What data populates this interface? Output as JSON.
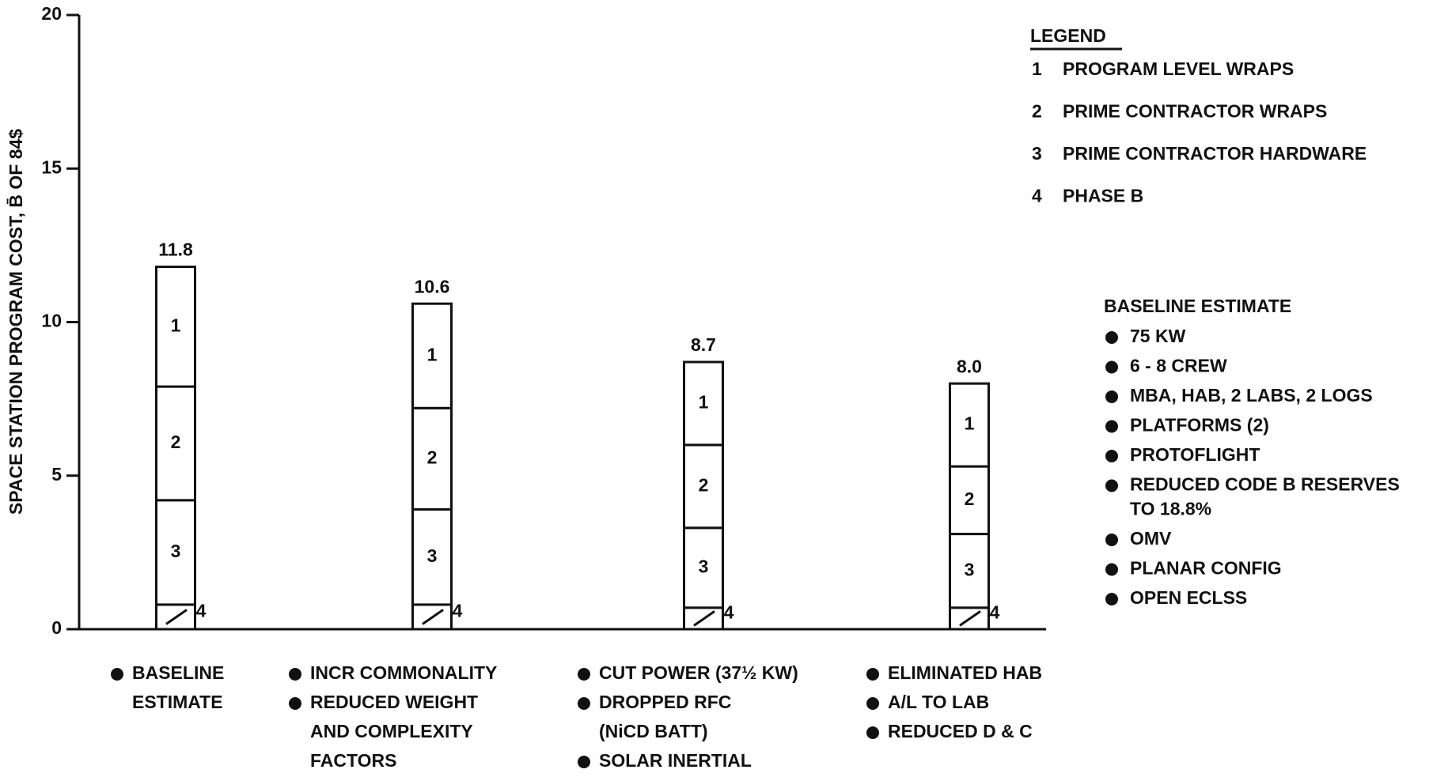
{
  "chart_data": {
    "type": "stacked-bar",
    "y_label": "SPACE STATION PROGRAM COST, B̄ OF 84$",
    "categories": [
      [
        [
          "BASELINE",
          "ESTIMATE"
        ]
      ],
      [
        [
          "INCR COMMONALITY"
        ],
        [
          "REDUCED WEIGHT",
          "AND COMPLEXITY",
          "FACTORS"
        ]
      ],
      [
        [
          "CUT POWER (37½ KW)"
        ],
        [
          "DROPPED RFC",
          "(NiCD BATT)"
        ],
        [
          "SOLAR INERTIAL"
        ]
      ],
      [
        [
          "ELIMINATED HAB"
        ],
        [
          "A/L TO LAB"
        ],
        [
          "REDUCED D & C"
        ]
      ]
    ],
    "series": [
      {
        "key": "1",
        "name": "PROGRAM LEVEL WRAPS",
        "values": [
          3.9,
          3.4,
          2.7,
          2.7
        ]
      },
      {
        "key": "2",
        "name": "PRIME CONTRACTOR WRAPS",
        "values": [
          3.7,
          3.3,
          2.7,
          2.2
        ]
      },
      {
        "key": "3",
        "name": "PRIME CONTRACTOR HARDWARE",
        "values": [
          3.4,
          3.1,
          2.6,
          2.4
        ]
      },
      {
        "key": "4",
        "name": "PHASE B",
        "values": [
          0.8,
          0.8,
          0.7,
          0.7
        ]
      }
    ],
    "totals": [
      11.8,
      10.6,
      8.7,
      8.0
    ],
    "total_labels": [
      "11.8",
      "10.6",
      "8.7",
      "8.0"
    ],
    "ylim": [
      0,
      20
    ],
    "yticks": [
      0,
      5,
      10,
      15,
      20
    ],
    "grid": false,
    "color": "#ffffff",
    "stroke": "#111111",
    "legend_title": "LEGEND",
    "baseline_box": {
      "title": "BASELINE ESTIMATE",
      "items": [
        [
          "75 KW"
        ],
        [
          "6 - 8 CREW"
        ],
        [
          "MBA, HAB, 2 LABS, 2 LOGS"
        ],
        [
          "PLATFORMS (2)"
        ],
        [
          "PROTOFLIGHT"
        ],
        [
          "REDUCED CODE B RESERVES",
          "TO 18.8%"
        ],
        [
          "OMV"
        ],
        [
          "PLANAR CONFIG"
        ],
        [
          "OPEN ECLSS"
        ]
      ]
    }
  }
}
